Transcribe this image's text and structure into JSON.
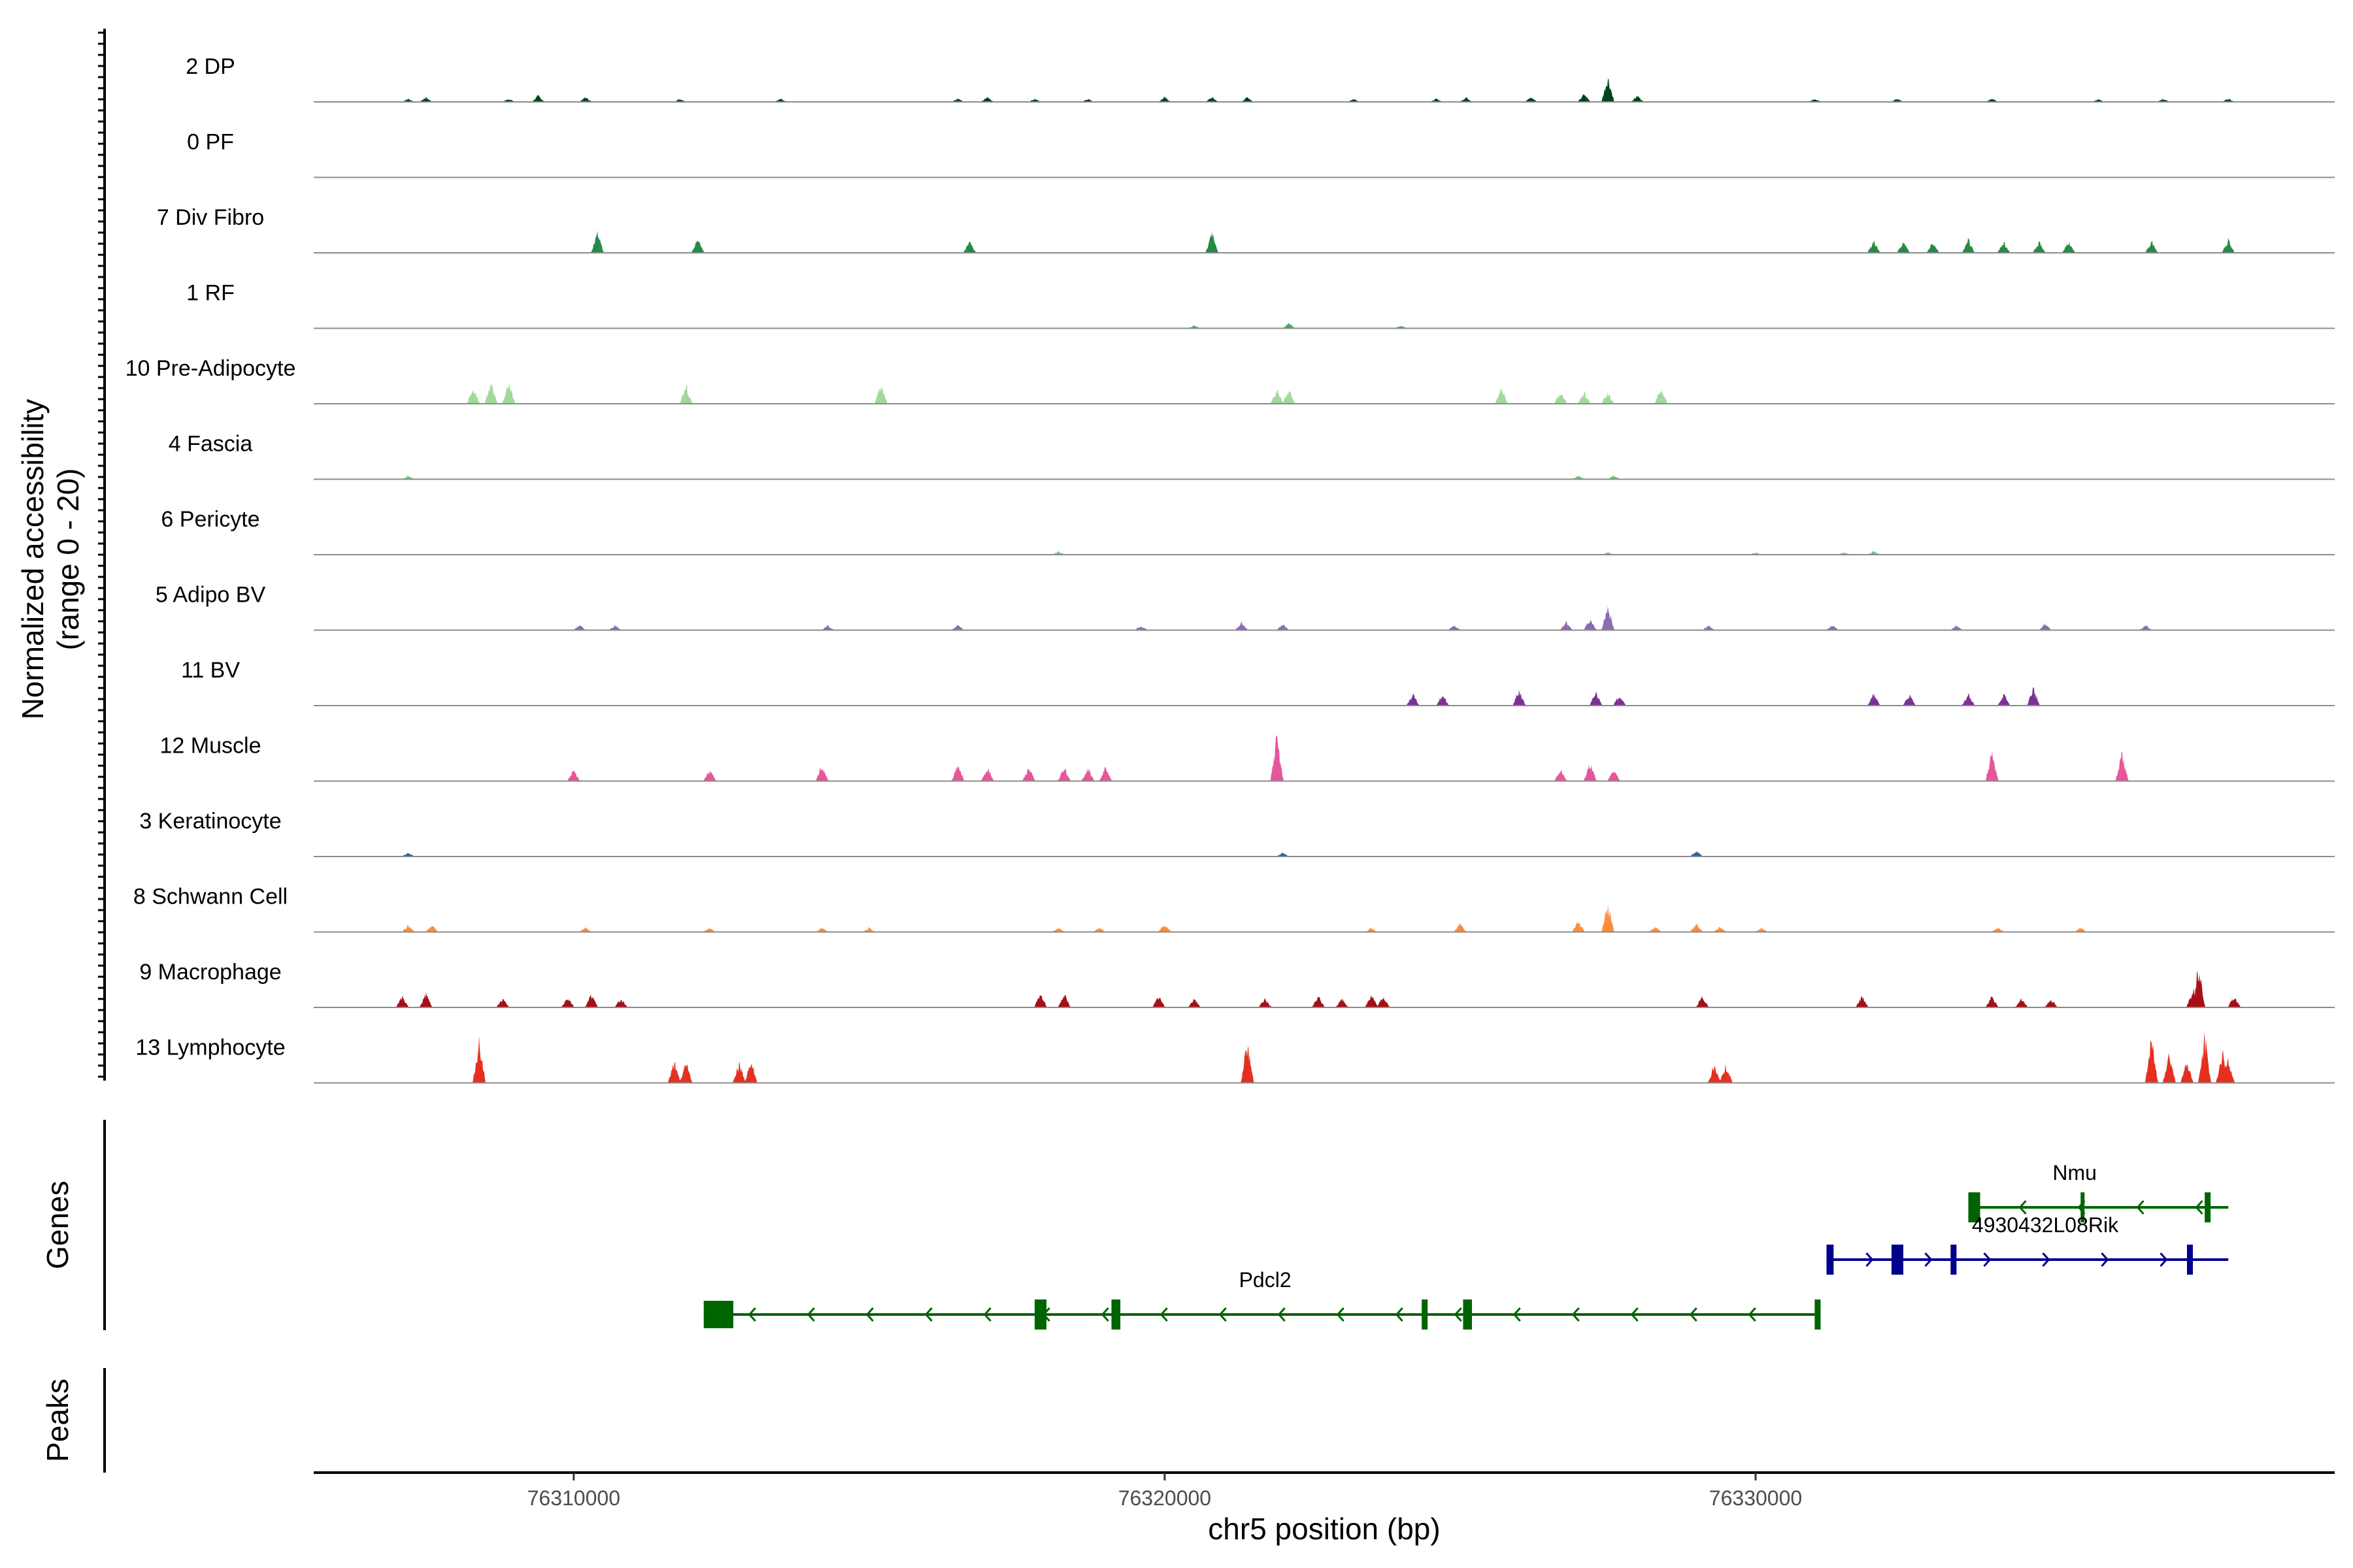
{
  "chart_data": {
    "type": "area",
    "y_axis_title": [
      "Normalized accessibility",
      "(range 0 - 20)"
    ],
    "y_range": [
      0,
      20
    ],
    "x_axis_title": "chr5 position (bp)",
    "x_range": [
      76305600,
      76339800
    ],
    "x_ticks": [
      76310000,
      76320000,
      76330000
    ],
    "x_tick_labels": [
      "76310000",
      "76320000",
      "76330000"
    ],
    "panel_titles": {
      "genes": "Genes",
      "peaks": "Peaks"
    },
    "tracks": [
      {
        "name": "2 DP",
        "color": "#00441b",
        "noise": 0.45,
        "mult": 0.7,
        "peaks": [
          [
            76307200,
            2
          ],
          [
            76307500,
            3
          ],
          [
            76308900,
            2
          ],
          [
            76309400,
            4
          ],
          [
            76310200,
            3
          ],
          [
            76311800,
            2
          ],
          [
            76313500,
            2
          ],
          [
            76316500,
            2
          ],
          [
            76317000,
            3
          ],
          [
            76317800,
            2
          ],
          [
            76318700,
            2
          ],
          [
            76320000,
            3
          ],
          [
            76320800,
            3
          ],
          [
            76321400,
            3
          ],
          [
            76323200,
            2
          ],
          [
            76324600,
            2
          ],
          [
            76325100,
            3
          ],
          [
            76326200,
            3
          ],
          [
            76327500,
            16
          ],
          [
            76327100,
            5
          ],
          [
            76328000,
            4
          ],
          [
            76331000,
            2
          ],
          [
            76332400,
            2
          ],
          [
            76334000,
            2
          ],
          [
            76335800,
            2
          ],
          [
            76336900,
            2
          ],
          [
            76338000,
            2
          ]
        ]
      },
      {
        "name": "0 PF",
        "color": "#1b7a3f",
        "noise": 0.55,
        "mult": 0.5,
        "peaks": []
      },
      {
        "name": "7 Div Fibro",
        "color": "#238b45",
        "noise": 0,
        "mult": 1,
        "peaks": [
          [
            76310400,
            9
          ],
          [
            76312100,
            6
          ],
          [
            76316700,
            5
          ],
          [
            76320800,
            9
          ],
          [
            76332000,
            5
          ],
          [
            76332500,
            5
          ],
          [
            76333000,
            5
          ],
          [
            76333600,
            6
          ],
          [
            76334200,
            5
          ],
          [
            76334800,
            5
          ],
          [
            76335300,
            5
          ],
          [
            76336700,
            5
          ],
          [
            76338000,
            6
          ]
        ]
      },
      {
        "name": "1 RF",
        "color": "#41ab5d",
        "noise": 0.55,
        "mult": 0.6,
        "peaks": [
          [
            76322100,
            4
          ],
          [
            76320500,
            2
          ],
          [
            76324000,
            2
          ]
        ]
      },
      {
        "name": "10 Pre-Adipocyte",
        "color": "#a1d99b",
        "noise": 0,
        "mult": 1,
        "peaks": [
          [
            76308300,
            7
          ],
          [
            76308600,
            9
          ],
          [
            76308900,
            9
          ],
          [
            76311900,
            8
          ],
          [
            76315200,
            9
          ],
          [
            76321900,
            6
          ],
          [
            76322100,
            6
          ],
          [
            76325700,
            7
          ],
          [
            76326700,
            5
          ],
          [
            76327100,
            5
          ],
          [
            76327500,
            5
          ],
          [
            76328400,
            7
          ]
        ]
      },
      {
        "name": "4 Fascia",
        "color": "#74c476",
        "noise": 0.35,
        "mult": 0.5,
        "peaks": [
          [
            76307200,
            3
          ],
          [
            76327000,
            3
          ],
          [
            76327600,
            3
          ]
        ]
      },
      {
        "name": "6 Pericyte",
        "color": "#66c2a4",
        "noise": 0.3,
        "mult": 0.5,
        "peaks": [
          [
            76318200,
            3
          ],
          [
            76330000,
            2
          ],
          [
            76331500,
            2
          ],
          [
            76332000,
            3
          ],
          [
            76327500,
            2
          ]
        ]
      },
      {
        "name": "5 Adipo BV",
        "color": "#8c6bb1",
        "noise": 0.45,
        "mult": 0.7,
        "peaks": [
          [
            76310100,
            3
          ],
          [
            76310700,
            3
          ],
          [
            76314300,
            3
          ],
          [
            76316500,
            3
          ],
          [
            76319600,
            3
          ],
          [
            76321300,
            5
          ],
          [
            76322000,
            4
          ],
          [
            76324900,
            3
          ],
          [
            76326800,
            5
          ],
          [
            76327200,
            7
          ],
          [
            76327500,
            14
          ],
          [
            76329200,
            3
          ],
          [
            76331300,
            3
          ],
          [
            76333400,
            3
          ],
          [
            76334900,
            4
          ],
          [
            76336600,
            3
          ]
        ]
      },
      {
        "name": "11 BV",
        "color": "#7b3294",
        "noise": 0,
        "mult": 1,
        "peaks": [
          [
            76324200,
            5
          ],
          [
            76324700,
            5
          ],
          [
            76326000,
            7
          ],
          [
            76327300,
            6
          ],
          [
            76327700,
            5
          ],
          [
            76332000,
            5
          ],
          [
            76332600,
            5
          ],
          [
            76333600,
            5
          ],
          [
            76334200,
            5
          ],
          [
            76334700,
            8
          ]
        ]
      },
      {
        "name": "12 Muscle",
        "color": "#e7559a",
        "noise": 0,
        "mult": 1,
        "peaks": [
          [
            76310000,
            5
          ],
          [
            76312300,
            5
          ],
          [
            76314200,
            7
          ],
          [
            76316500,
            7
          ],
          [
            76317000,
            6
          ],
          [
            76317700,
            6
          ],
          [
            76318300,
            6
          ],
          [
            76318700,
            6
          ],
          [
            76319000,
            6
          ],
          [
            76321900,
            20
          ],
          [
            76326700,
            5
          ],
          [
            76327200,
            8
          ],
          [
            76327600,
            5
          ],
          [
            76334000,
            13
          ],
          [
            76336200,
            12
          ]
        ]
      },
      {
        "name": "3 Keratinocyte",
        "color": "#2166ac",
        "noise": 0.4,
        "mult": 0.6,
        "peaks": [
          [
            76307200,
            3
          ],
          [
            76329000,
            4
          ],
          [
            76322000,
            3
          ]
        ]
      },
      {
        "name": "8 Schwann Cell",
        "color": "#fd8d3c",
        "noise": 0.2,
        "mult": 0.6,
        "peaks": [
          [
            76307200,
            5
          ],
          [
            76307600,
            5
          ],
          [
            76310200,
            3
          ],
          [
            76312300,
            3
          ],
          [
            76314200,
            3
          ],
          [
            76315000,
            3
          ],
          [
            76318200,
            3
          ],
          [
            76318900,
            3
          ],
          [
            76320000,
            6
          ],
          [
            76323500,
            3
          ],
          [
            76325000,
            6
          ],
          [
            76327500,
            20
          ],
          [
            76327000,
            8
          ],
          [
            76328300,
            4
          ],
          [
            76329000,
            6
          ],
          [
            76329400,
            4
          ],
          [
            76330100,
            3
          ],
          [
            76334100,
            3
          ],
          [
            76335500,
            3
          ]
        ]
      },
      {
        "name": "9 Macrophage",
        "color": "#a50f15",
        "noise": 0,
        "mult": 1,
        "peaks": [
          [
            76307100,
            5
          ],
          [
            76307500,
            6
          ],
          [
            76308800,
            4
          ],
          [
            76309900,
            5
          ],
          [
            76310300,
            6
          ],
          [
            76310800,
            4
          ],
          [
            76317900,
            6
          ],
          [
            76318300,
            6
          ],
          [
            76319900,
            5
          ],
          [
            76320500,
            4
          ],
          [
            76321700,
            4
          ],
          [
            76322600,
            5
          ],
          [
            76323000,
            4
          ],
          [
            76323500,
            6
          ],
          [
            76323700,
            5
          ],
          [
            76329100,
            5
          ],
          [
            76331800,
            5
          ],
          [
            76334000,
            5
          ],
          [
            76334500,
            4
          ],
          [
            76335000,
            4
          ],
          [
            76337400,
            8
          ],
          [
            76337500,
            18
          ],
          [
            76338100,
            5
          ]
        ]
      },
      {
        "name": "13 Lymphocyte",
        "color": "#e6301f",
        "noise": 0,
        "mult": 1,
        "peaks": [
          [
            76308400,
            18
          ],
          [
            76311700,
            9
          ],
          [
            76311900,
            9
          ],
          [
            76312800,
            9
          ],
          [
            76313000,
            9
          ],
          [
            76321400,
            18
          ],
          [
            76329300,
            8
          ],
          [
            76329500,
            8
          ],
          [
            76336700,
            20
          ],
          [
            76337000,
            14
          ],
          [
            76337300,
            10
          ],
          [
            76337600,
            20
          ],
          [
            76337900,
            14
          ],
          [
            76338000,
            10
          ]
        ]
      }
    ],
    "genes": [
      {
        "name": "Nmu",
        "strand": "-",
        "color": "#006400",
        "start": 76333700,
        "end": 76338000,
        "row": 0,
        "label_x": 76335400,
        "exons": [
          [
            76333600,
            76333800
          ],
          [
            76335500,
            76335550
          ],
          [
            76337600,
            76337700
          ]
        ]
      },
      {
        "name": "4930432L08Rik",
        "strand": "+",
        "color": "#00008b",
        "start": 76331200,
        "end": 76338000,
        "row": 1,
        "label_x": 76334900,
        "exons": [
          [
            76331200,
            76331320
          ],
          [
            76332300,
            76332500
          ],
          [
            76333300,
            76333400
          ],
          [
            76337300,
            76337400
          ]
        ]
      },
      {
        "name": "Pdcl2",
        "strand": "-",
        "color": "#006400",
        "start": 76312200,
        "end": 76331000,
        "row": 2,
        "label_x": 76321700,
        "exons": [
          [
            76312200,
            76312700
          ],
          [
            76317800,
            76318000
          ],
          [
            76319100,
            76319250
          ],
          [
            76324350,
            76324450
          ],
          [
            76325050,
            76325200
          ],
          [
            76331000,
            76331100
          ]
        ]
      }
    ]
  }
}
